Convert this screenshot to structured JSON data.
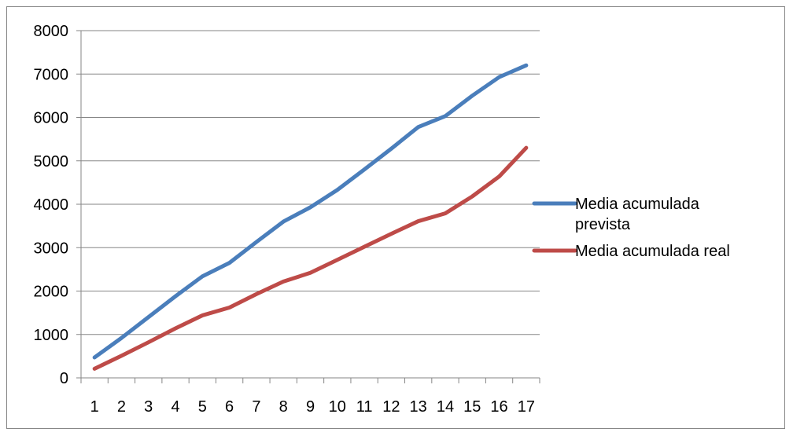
{
  "chart_data": {
    "type": "line",
    "x": [
      "1",
      "2",
      "3",
      "4",
      "5",
      "6",
      "7",
      "8",
      "9",
      "10",
      "11",
      "12",
      "13",
      "14",
      "15",
      "16",
      "17"
    ],
    "ylim": [
      0,
      8000
    ],
    "yticks": [
      0,
      1000,
      2000,
      3000,
      4000,
      5000,
      6000,
      7000,
      8000
    ],
    "grid": true,
    "legend_position": "right",
    "series": [
      {
        "name": "Media acumulada prevista",
        "color": "#4a7ebb",
        "values": [
          470,
          920,
          1400,
          1880,
          2340,
          2650,
          3130,
          3600,
          3930,
          4330,
          4800,
          5280,
          5780,
          6030,
          6500,
          6930,
          7200
        ]
      },
      {
        "name": "Media acumulada real",
        "color": "#be4b48",
        "values": [
          210,
          510,
          820,
          1140,
          1440,
          1620,
          1930,
          2220,
          2420,
          2720,
          3020,
          3320,
          3610,
          3790,
          4180,
          4640,
          5300
        ]
      }
    ]
  }
}
